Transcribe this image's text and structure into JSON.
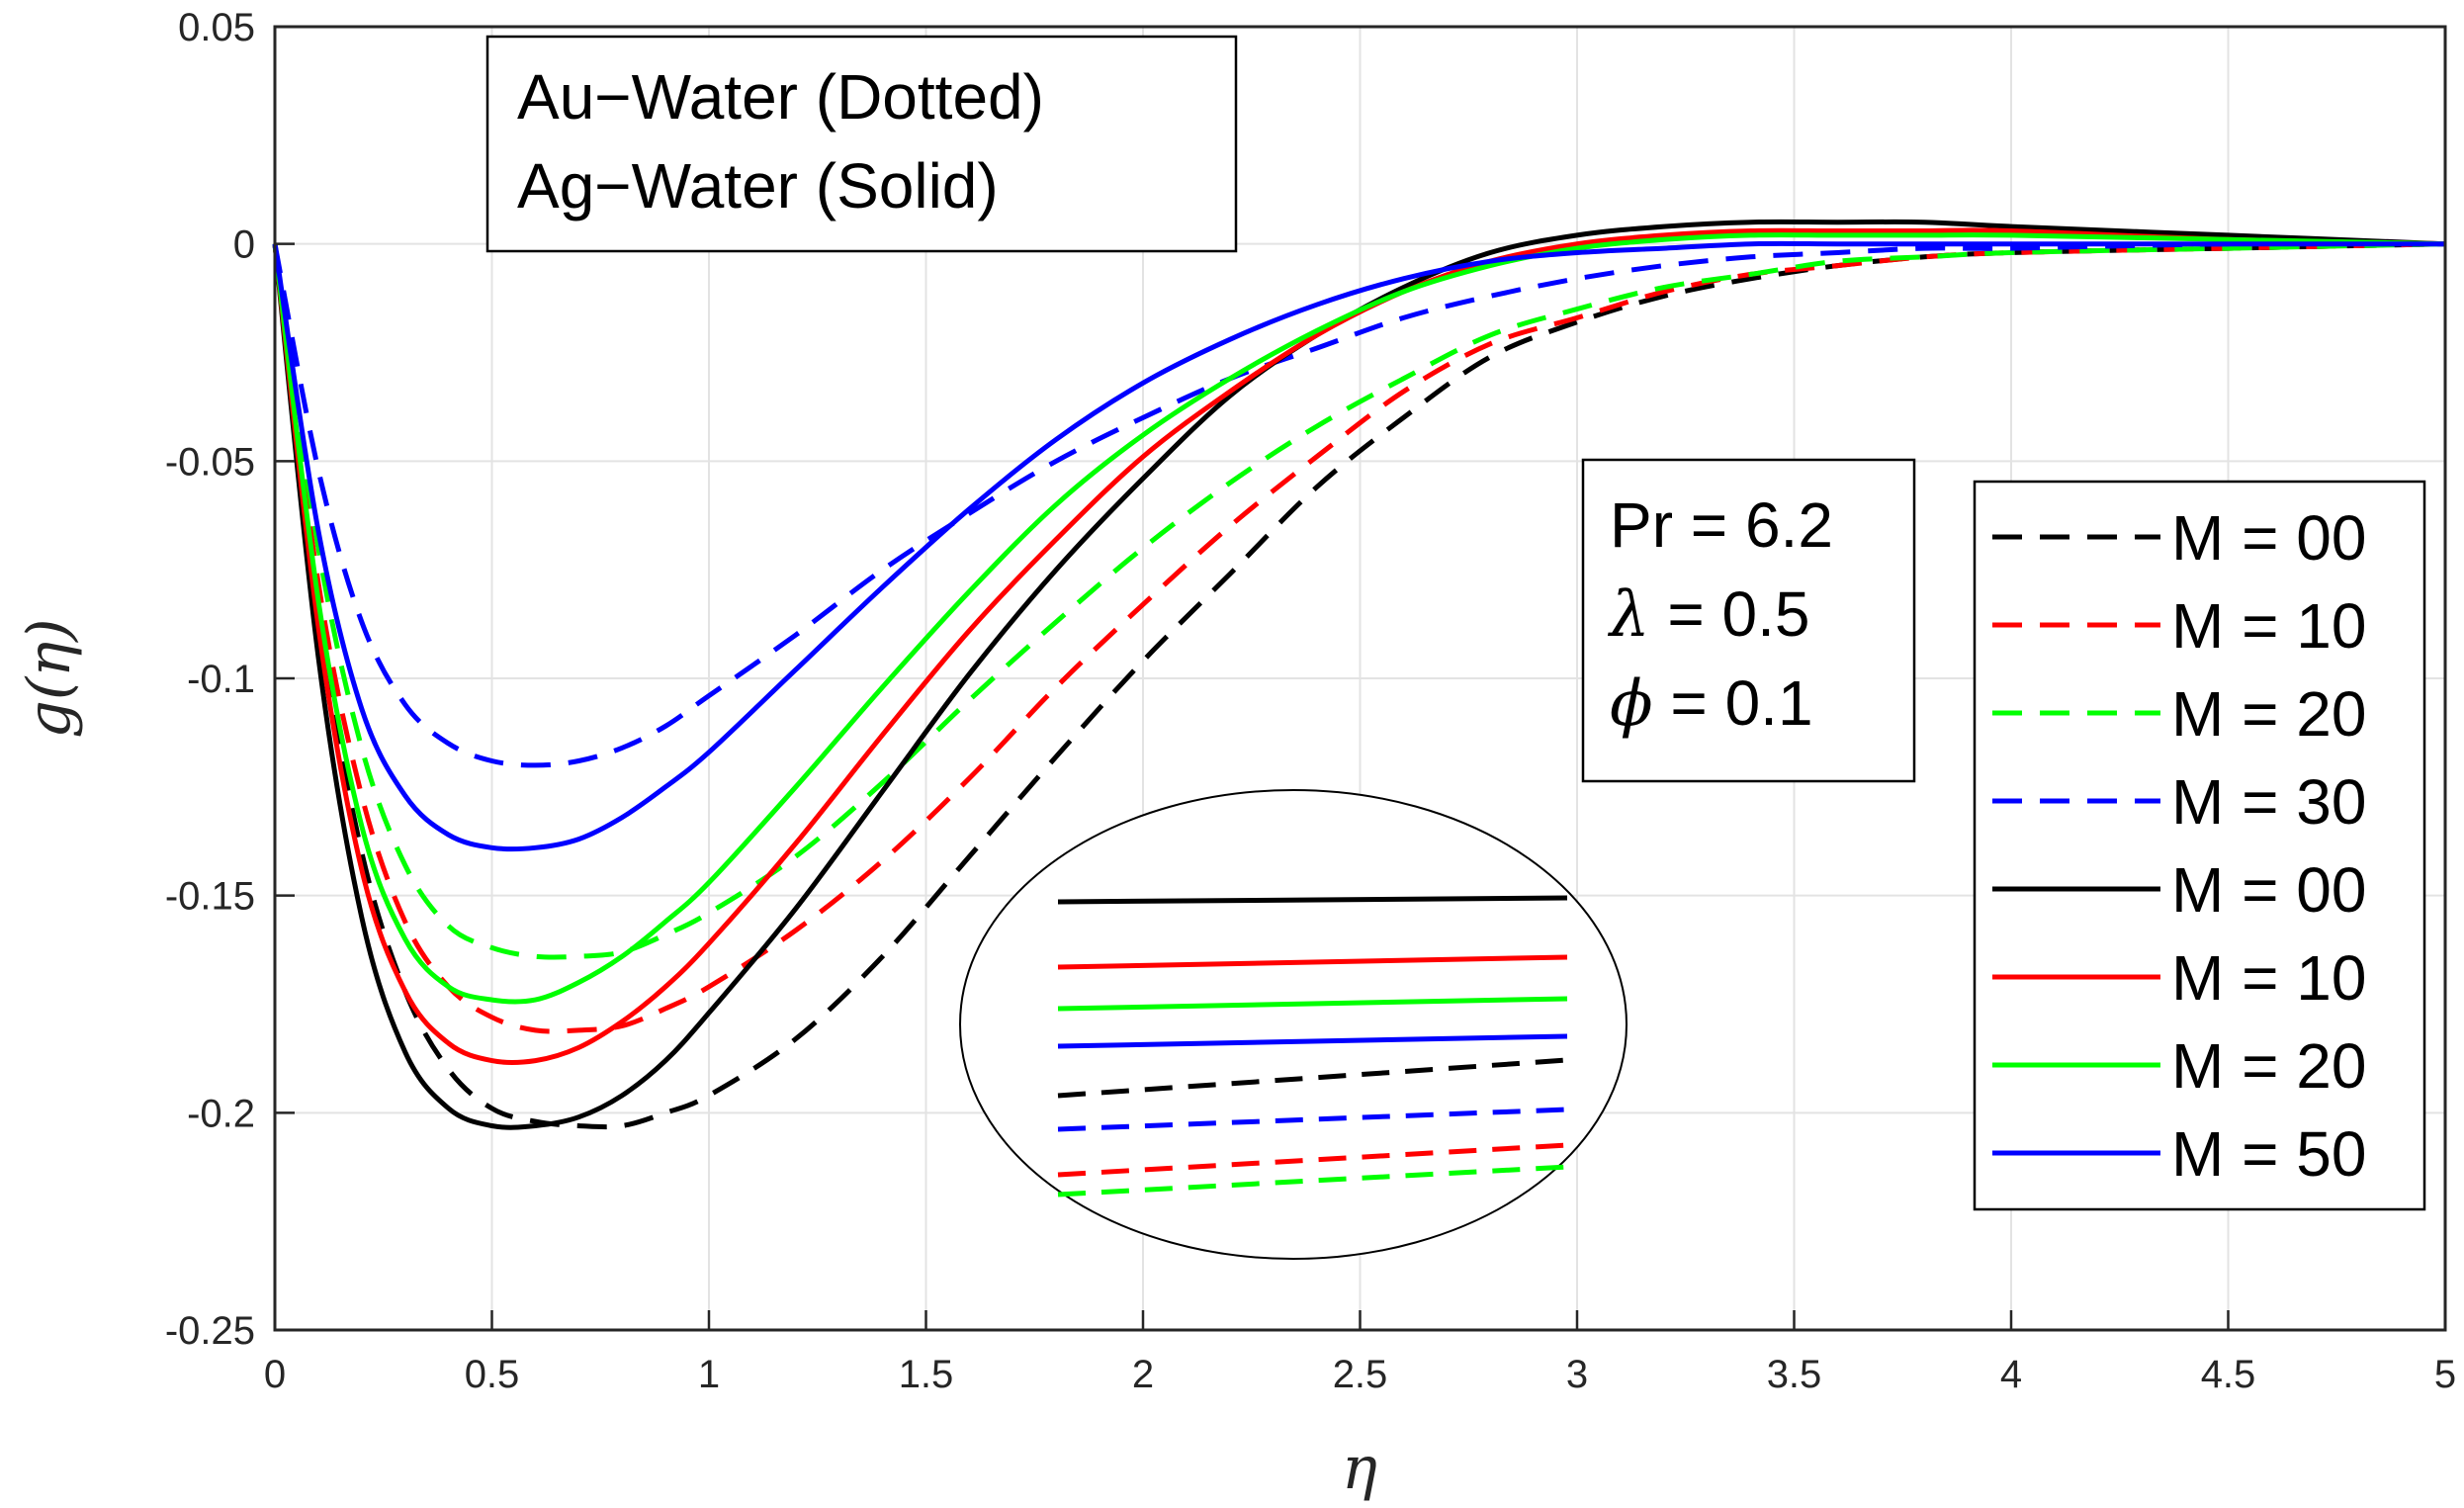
{
  "chart_data": {
    "type": "line",
    "xlabel": "η",
    "ylabel": "g(η)",
    "xlim": [
      0,
      5
    ],
    "ylim": [
      -0.25,
      0.05
    ],
    "grid": true,
    "xticks": [
      "0",
      "0.5",
      "1",
      "1.5",
      "2",
      "2.5",
      "3",
      "3.5",
      "4",
      "4.5",
      "5"
    ],
    "yticks": [
      "0.05",
      "0",
      "-0.05",
      "-0.1",
      "-0.15",
      "-0.2",
      "-0.25"
    ],
    "xtick_values": [
      0,
      0.5,
      1,
      1.5,
      2,
      2.5,
      3,
      3.5,
      4,
      4.5,
      5
    ],
    "ytick_values": [
      0.05,
      0,
      -0.05,
      -0.1,
      -0.15,
      -0.2,
      -0.25
    ],
    "annotation_fluids": [
      "Au−Water (Dotted)",
      "Ag−Water (Solid)"
    ],
    "annotation_params": {
      "pr": "Pr = 6.2",
      "lambda_sym": "λ",
      "lambda_val": " = 0.5",
      "phi_sym": "ϕ",
      "phi_val": " = 0.1"
    },
    "legend_position": "right",
    "inset": "zoomed view of curve ends (ellipse)",
    "series": [
      {
        "name": "M = 00",
        "color": "#000000",
        "dash": true,
        "x": [
          0,
          0.1,
          0.2,
          0.3,
          0.4,
          0.5,
          0.6,
          0.7,
          0.8,
          0.9,
          1.0,
          1.2,
          1.4,
          1.6,
          1.8,
          2.0,
          2.2,
          2.4,
          2.6,
          2.8,
          3.0,
          3.2,
          3.4,
          3.6,
          3.8,
          4.0,
          4.5,
          5.0
        ],
        "y": [
          0,
          -0.085,
          -0.14,
          -0.172,
          -0.19,
          -0.199,
          -0.202,
          -0.203,
          -0.203,
          -0.2,
          -0.196,
          -0.183,
          -0.164,
          -0.141,
          -0.118,
          -0.096,
          -0.076,
          -0.056,
          -0.04,
          -0.026,
          -0.018,
          -0.012,
          -0.008,
          -0.005,
          -0.003,
          -0.002,
          -0.001,
          0
        ]
      },
      {
        "name": "M = 10",
        "color": "#ff0000",
        "dash": true,
        "x": [
          0,
          0.1,
          0.2,
          0.3,
          0.4,
          0.5,
          0.6,
          0.7,
          0.8,
          0.9,
          1.0,
          1.2,
          1.4,
          1.6,
          1.8,
          2.0,
          2.2,
          2.4,
          2.6,
          2.8,
          3.0,
          3.2,
          3.4,
          3.6,
          3.8,
          4.0,
          4.5,
          5.0
        ],
        "y": [
          0,
          -0.078,
          -0.127,
          -0.156,
          -0.171,
          -0.178,
          -0.181,
          -0.181,
          -0.18,
          -0.176,
          -0.171,
          -0.158,
          -0.142,
          -0.123,
          -0.102,
          -0.083,
          -0.065,
          -0.049,
          -0.034,
          -0.023,
          -0.017,
          -0.011,
          -0.007,
          -0.005,
          -0.003,
          -0.002,
          -0.001,
          0
        ]
      },
      {
        "name": "M = 20",
        "color": "#00ff00",
        "dash": true,
        "x": [
          0,
          0.1,
          0.2,
          0.3,
          0.4,
          0.5,
          0.6,
          0.7,
          0.8,
          0.9,
          1.0,
          1.2,
          1.4,
          1.6,
          1.8,
          2.0,
          2.2,
          2.4,
          2.6,
          2.8,
          3.0,
          3.2,
          3.4,
          3.6,
          3.8,
          4.0,
          4.5,
          5.0
        ],
        "y": [
          0,
          -0.07,
          -0.116,
          -0.143,
          -0.157,
          -0.162,
          -0.164,
          -0.164,
          -0.163,
          -0.159,
          -0.154,
          -0.141,
          -0.124,
          -0.105,
          -0.087,
          -0.07,
          -0.055,
          -0.042,
          -0.031,
          -0.021,
          -0.015,
          -0.01,
          -0.007,
          -0.004,
          -0.003,
          -0.002,
          -0.001,
          0
        ]
      },
      {
        "name": "M = 30",
        "color": "#0000ff",
        "dash": true,
        "x": [
          0,
          0.1,
          0.2,
          0.3,
          0.4,
          0.5,
          0.6,
          0.7,
          0.8,
          0.9,
          1.0,
          1.2,
          1.4,
          1.6,
          1.8,
          2.0,
          2.2,
          2.4,
          2.6,
          2.8,
          3.0,
          3.2,
          3.4,
          3.6,
          3.8,
          4.0,
          4.5,
          5.0
        ],
        "y": [
          0,
          -0.052,
          -0.087,
          -0.106,
          -0.115,
          -0.119,
          -0.12,
          -0.119,
          -0.116,
          -0.111,
          -0.104,
          -0.09,
          -0.075,
          -0.062,
          -0.05,
          -0.04,
          -0.031,
          -0.024,
          -0.017,
          -0.012,
          -0.008,
          -0.005,
          -0.003,
          -0.002,
          -0.001,
          -0.001,
          0,
          0
        ]
      },
      {
        "name": "M = 00",
        "color": "#000000",
        "dash": false,
        "x": [
          0,
          0.1,
          0.2,
          0.3,
          0.4,
          0.5,
          0.6,
          0.7,
          0.8,
          0.9,
          1.0,
          1.2,
          1.4,
          1.6,
          1.8,
          2.0,
          2.2,
          2.4,
          2.6,
          2.8,
          3.0,
          3.2,
          3.4,
          3.6,
          3.8,
          4.0,
          4.5,
          5.0
        ],
        "y": [
          0,
          -0.095,
          -0.155,
          -0.186,
          -0.199,
          -0.203,
          -0.203,
          -0.201,
          -0.196,
          -0.188,
          -0.177,
          -0.153,
          -0.126,
          -0.099,
          -0.075,
          -0.054,
          -0.035,
          -0.021,
          -0.01,
          -0.002,
          0.002,
          0.004,
          0.005,
          0.005,
          0.005,
          0.004,
          0.002,
          0
        ]
      },
      {
        "name": "M = 10",
        "color": "#ff0000",
        "dash": false,
        "x": [
          0,
          0.1,
          0.2,
          0.3,
          0.4,
          0.5,
          0.6,
          0.7,
          0.8,
          0.9,
          1.0,
          1.2,
          1.4,
          1.6,
          1.8,
          2.0,
          2.2,
          2.4,
          2.6,
          2.8,
          3.0,
          3.2,
          3.4,
          3.6,
          3.8,
          4.0,
          4.5,
          5.0
        ],
        "y": [
          0,
          -0.088,
          -0.144,
          -0.172,
          -0.184,
          -0.188,
          -0.188,
          -0.185,
          -0.179,
          -0.171,
          -0.161,
          -0.138,
          -0.113,
          -0.089,
          -0.068,
          -0.049,
          -0.034,
          -0.021,
          -0.011,
          -0.004,
          0,
          0.002,
          0.003,
          0.003,
          0.003,
          0.003,
          0.001,
          0
        ]
      },
      {
        "name": "M = 20",
        "color": "#00ff00",
        "dash": false,
        "x": [
          0,
          0.1,
          0.2,
          0.3,
          0.4,
          0.5,
          0.6,
          0.7,
          0.8,
          0.9,
          1.0,
          1.2,
          1.4,
          1.6,
          1.8,
          2.0,
          2.2,
          2.4,
          2.6,
          2.8,
          3.0,
          3.2,
          3.4,
          3.6,
          3.8,
          4.0,
          4.5,
          5.0
        ],
        "y": [
          0,
          -0.082,
          -0.134,
          -0.16,
          -0.171,
          -0.174,
          -0.174,
          -0.17,
          -0.164,
          -0.156,
          -0.147,
          -0.125,
          -0.102,
          -0.08,
          -0.06,
          -0.044,
          -0.031,
          -0.02,
          -0.011,
          -0.005,
          -0.001,
          0.001,
          0.002,
          0.002,
          0.002,
          0.002,
          0.001,
          0
        ]
      },
      {
        "name": "M = 50",
        "color": "#0000ff",
        "dash": false,
        "x": [
          0,
          0.1,
          0.2,
          0.3,
          0.4,
          0.5,
          0.6,
          0.7,
          0.8,
          0.9,
          1.0,
          1.2,
          1.4,
          1.6,
          1.8,
          2.0,
          2.2,
          2.4,
          2.6,
          2.8,
          3.0,
          3.2,
          3.4,
          3.6,
          3.8,
          4.0,
          4.5,
          5.0
        ],
        "y": [
          0,
          -0.066,
          -0.107,
          -0.127,
          -0.136,
          -0.139,
          -0.139,
          -0.137,
          -0.132,
          -0.125,
          -0.117,
          -0.098,
          -0.079,
          -0.061,
          -0.045,
          -0.032,
          -0.022,
          -0.014,
          -0.008,
          -0.004,
          -0.002,
          -0.001,
          0,
          0,
          0,
          0,
          0,
          0
        ]
      }
    ]
  }
}
